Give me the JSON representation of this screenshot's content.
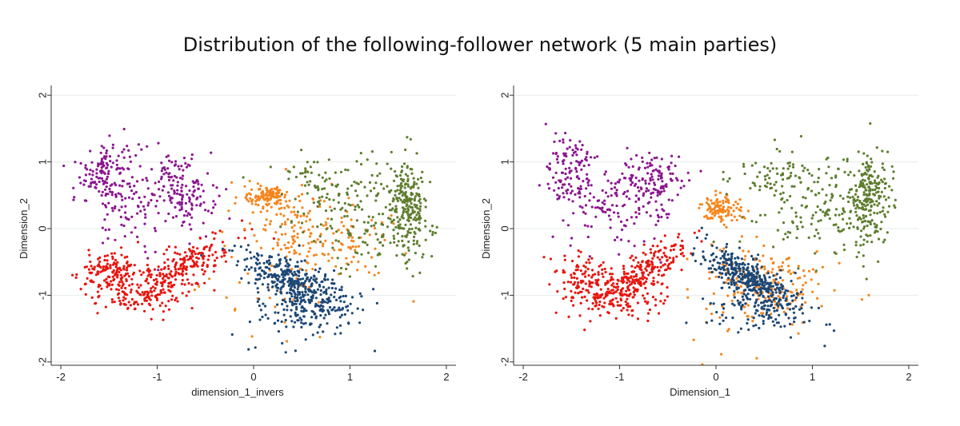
{
  "title": "Distribution of the following-follower network (5 main parties)",
  "colors": {
    "purple": "#8b168f",
    "red": "#e8140e",
    "orange": "#f5861f",
    "blue": "#1d4774",
    "green": "#5e7d2e",
    "grid": "#e6ece8",
    "axis": "#333333"
  },
  "chart_data": [
    {
      "type": "scatter",
      "xlabel": "dimension_1_invers",
      "ylabel": "Dimension_2",
      "xlim": [
        -2.1,
        2.1
      ],
      "ylim": [
        -2.05,
        2.05
      ],
      "xticks": [
        -2,
        -1,
        0,
        1,
        2
      ],
      "yticks": [
        -2,
        -1,
        0,
        1,
        2
      ],
      "grid": true,
      "series": [
        {
          "color_key": "purple",
          "clusters": [
            {
              "n": 120,
              "cx": -1.55,
              "cy": 0.85,
              "sx": 0.12,
              "sy": 0.25,
              "rot": 0
            },
            {
              "n": 140,
              "cx": -1.15,
              "cy": 0.45,
              "sx": 0.35,
              "sy": 0.35,
              "rot": 0
            },
            {
              "n": 110,
              "cx": -0.7,
              "cy": 0.6,
              "sx": 0.15,
              "sy": 0.25,
              "rot": 0
            }
          ]
        },
        {
          "color_key": "red",
          "clusters": [
            {
              "n": 200,
              "cx": -0.75,
              "cy": -0.6,
              "sx": 0.35,
              "sy": 0.13,
              "rot": 40
            },
            {
              "n": 160,
              "cx": -1.2,
              "cy": -0.9,
              "sx": 0.3,
              "sy": 0.22,
              "rot": 0
            },
            {
              "n": 100,
              "cx": -1.5,
              "cy": -0.65,
              "sx": 0.12,
              "sy": 0.15,
              "rot": 0
            }
          ]
        },
        {
          "color_key": "orange",
          "clusters": [
            {
              "n": 120,
              "cx": 0.15,
              "cy": 0.48,
              "sx": 0.12,
              "sy": 0.08,
              "rot": 0
            },
            {
              "n": 180,
              "cx": 0.65,
              "cy": -0.05,
              "sx": 0.4,
              "sy": 0.3,
              "rot": -25
            },
            {
              "n": 40,
              "cx": 0.3,
              "cy": -0.8,
              "sx": 0.4,
              "sy": 0.4,
              "rot": 0
            }
          ]
        },
        {
          "color_key": "blue",
          "clusters": [
            {
              "n": 380,
              "cx": 0.45,
              "cy": -0.85,
              "sx": 0.35,
              "sy": 0.14,
              "rot": -42
            },
            {
              "n": 100,
              "cx": 0.5,
              "cy": -1.3,
              "sx": 0.3,
              "sy": 0.2,
              "rot": 0
            }
          ]
        },
        {
          "color_key": "green",
          "clusters": [
            {
              "n": 200,
              "cx": 1.6,
              "cy": 0.35,
              "sx": 0.09,
              "sy": 0.35,
              "rot": 0
            },
            {
              "n": 180,
              "cx": 1.2,
              "cy": 0.2,
              "sx": 0.4,
              "sy": 0.4,
              "rot": 0
            },
            {
              "n": 60,
              "cx": 0.65,
              "cy": 0.7,
              "sx": 0.25,
              "sy": 0.2,
              "rot": 0
            }
          ]
        }
      ]
    },
    {
      "type": "scatter",
      "xlabel": "Dimension_1",
      "ylabel": "Dimension_2",
      "xlim": [
        -2.1,
        2.1
      ],
      "ylim": [
        -2.05,
        2.05
      ],
      "xticks": [
        -2,
        -1,
        0,
        1,
        2
      ],
      "yticks": [
        -2,
        -1,
        0,
        1,
        2
      ],
      "grid": true,
      "series": [
        {
          "color_key": "purple",
          "clusters": [
            {
              "n": 110,
              "cx": -1.5,
              "cy": 0.85,
              "sx": 0.12,
              "sy": 0.25,
              "rot": 0
            },
            {
              "n": 140,
              "cx": -1.05,
              "cy": 0.4,
              "sx": 0.3,
              "sy": 0.35,
              "rot": 0
            },
            {
              "n": 110,
              "cx": -0.65,
              "cy": 0.7,
              "sx": 0.15,
              "sy": 0.2,
              "rot": 0
            }
          ]
        },
        {
          "color_key": "red",
          "clusters": [
            {
              "n": 200,
              "cx": -0.75,
              "cy": -0.65,
              "sx": 0.32,
              "sy": 0.12,
              "rot": 45
            },
            {
              "n": 160,
              "cx": -1.05,
              "cy": -1.0,
              "sx": 0.28,
              "sy": 0.2,
              "rot": 0
            },
            {
              "n": 80,
              "cx": -1.4,
              "cy": -0.75,
              "sx": 0.15,
              "sy": 0.2,
              "rot": 0
            }
          ]
        },
        {
          "color_key": "orange",
          "clusters": [
            {
              "n": 120,
              "cx": 0.05,
              "cy": 0.3,
              "sx": 0.12,
              "sy": 0.1,
              "rot": 0
            },
            {
              "n": 160,
              "cx": 0.55,
              "cy": -0.8,
              "sx": 0.35,
              "sy": 0.25,
              "rot": -30
            },
            {
              "n": 40,
              "cx": 0.2,
              "cy": -1.0,
              "sx": 0.35,
              "sy": 0.4,
              "rot": 0
            }
          ]
        },
        {
          "color_key": "blue",
          "clusters": [
            {
              "n": 380,
              "cx": 0.35,
              "cy": -0.75,
              "sx": 0.35,
              "sy": 0.12,
              "rot": -45
            },
            {
              "n": 100,
              "cx": 0.5,
              "cy": -1.2,
              "sx": 0.25,
              "sy": 0.18,
              "rot": 0
            }
          ]
        },
        {
          "color_key": "green",
          "clusters": [
            {
              "n": 200,
              "cx": 1.6,
              "cy": 0.45,
              "sx": 0.09,
              "sy": 0.35,
              "rot": 0
            },
            {
              "n": 180,
              "cx": 1.15,
              "cy": 0.35,
              "sx": 0.4,
              "sy": 0.38,
              "rot": 0
            },
            {
              "n": 60,
              "cx": 0.6,
              "cy": 0.8,
              "sx": 0.25,
              "sy": 0.18,
              "rot": 0
            }
          ]
        }
      ]
    }
  ]
}
